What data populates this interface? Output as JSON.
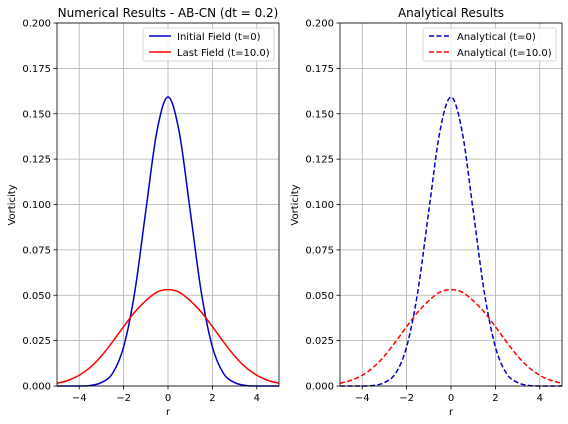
{
  "chart_data": [
    {
      "type": "line",
      "title": "Numerical Results - AB-CN (dt = 0.2)",
      "xlabel": "r",
      "ylabel": "Vorticity",
      "xlim": [
        -5,
        5
      ],
      "ylim": [
        0,
        0.2
      ],
      "xticks": [
        -4,
        -2,
        0,
        2,
        4
      ],
      "xtick_labels": [
        "−4",
        "−2",
        "0",
        "2",
        "4"
      ],
      "yticks": [
        0,
        0.025,
        0.05,
        0.075,
        0.1,
        0.125,
        0.15,
        0.175,
        0.2
      ],
      "ytick_labels": [
        "0.000",
        "0.025",
        "0.050",
        "0.075",
        "0.100",
        "0.125",
        "0.150",
        "0.175",
        "0.200"
      ],
      "grid": true,
      "legend_position": "top-right",
      "x": [
        -5.0,
        -4.5,
        -4.0,
        -3.5,
        -3.0,
        -2.5,
        -2.0,
        -1.5,
        -1.0,
        -0.5,
        0.0,
        0.5,
        1.0,
        1.5,
        2.0,
        2.5,
        3.0,
        3.5,
        4.0,
        4.5,
        5.0
      ],
      "series": [
        {
          "name": "Initial Field (t=0)",
          "color": "#0000cc",
          "style": "solid",
          "values": [
            0.0,
            0.0,
            0.0,
            0.0003,
            0.0019,
            0.0069,
            0.0215,
            0.0516,
            0.0965,
            0.1403,
            0.1592,
            0.1403,
            0.0965,
            0.0516,
            0.0215,
            0.0069,
            0.0019,
            0.0003,
            0.0,
            0.0,
            0.0
          ]
        },
        {
          "name": "Last Field (t=10.0)",
          "color": "#ff0000",
          "style": "solid",
          "values": [
            0.0015,
            0.0031,
            0.0059,
            0.0103,
            0.0165,
            0.0243,
            0.0327,
            0.0407,
            0.047,
            0.0517,
            0.0531,
            0.0517,
            0.047,
            0.0407,
            0.0327,
            0.0243,
            0.0165,
            0.0103,
            0.0059,
            0.0031,
            0.0015
          ]
        }
      ]
    },
    {
      "type": "line",
      "title": "Analytical Results",
      "xlabel": "r",
      "ylabel": "Vorticity",
      "xlim": [
        -5,
        5
      ],
      "ylim": [
        0,
        0.2
      ],
      "xticks": [
        -4,
        -2,
        0,
        2,
        4
      ],
      "xtick_labels": [
        "−4",
        "−2",
        "0",
        "2",
        "4"
      ],
      "yticks": [
        0,
        0.025,
        0.05,
        0.075,
        0.1,
        0.125,
        0.15,
        0.175,
        0.2
      ],
      "ytick_labels": [
        "0.000",
        "0.025",
        "0.050",
        "0.075",
        "0.100",
        "0.125",
        "0.150",
        "0.175",
        "0.200"
      ],
      "grid": true,
      "legend_position": "top-right",
      "x": [
        -5.0,
        -4.5,
        -4.0,
        -3.5,
        -3.0,
        -2.5,
        -2.0,
        -1.5,
        -1.0,
        -0.5,
        0.0,
        0.5,
        1.0,
        1.5,
        2.0,
        2.5,
        3.0,
        3.5,
        4.0,
        4.5,
        5.0
      ],
      "series": [
        {
          "name": "Analytical (t=0)",
          "color": "#0000cc",
          "style": "dashed",
          "values": [
            0.0,
            0.0,
            0.0,
            0.0003,
            0.0019,
            0.0069,
            0.0215,
            0.0516,
            0.0965,
            0.1403,
            0.1592,
            0.1403,
            0.0965,
            0.0516,
            0.0215,
            0.0069,
            0.0019,
            0.0003,
            0.0,
            0.0,
            0.0
          ]
        },
        {
          "name": "Analytical (t=10.0)",
          "color": "#ff0000",
          "style": "dashed",
          "values": [
            0.0015,
            0.0031,
            0.0059,
            0.0103,
            0.0165,
            0.0243,
            0.0327,
            0.0407,
            0.047,
            0.0517,
            0.0531,
            0.0517,
            0.047,
            0.0407,
            0.0327,
            0.0243,
            0.0165,
            0.0103,
            0.0059,
            0.0031,
            0.0015
          ]
        }
      ]
    }
  ]
}
